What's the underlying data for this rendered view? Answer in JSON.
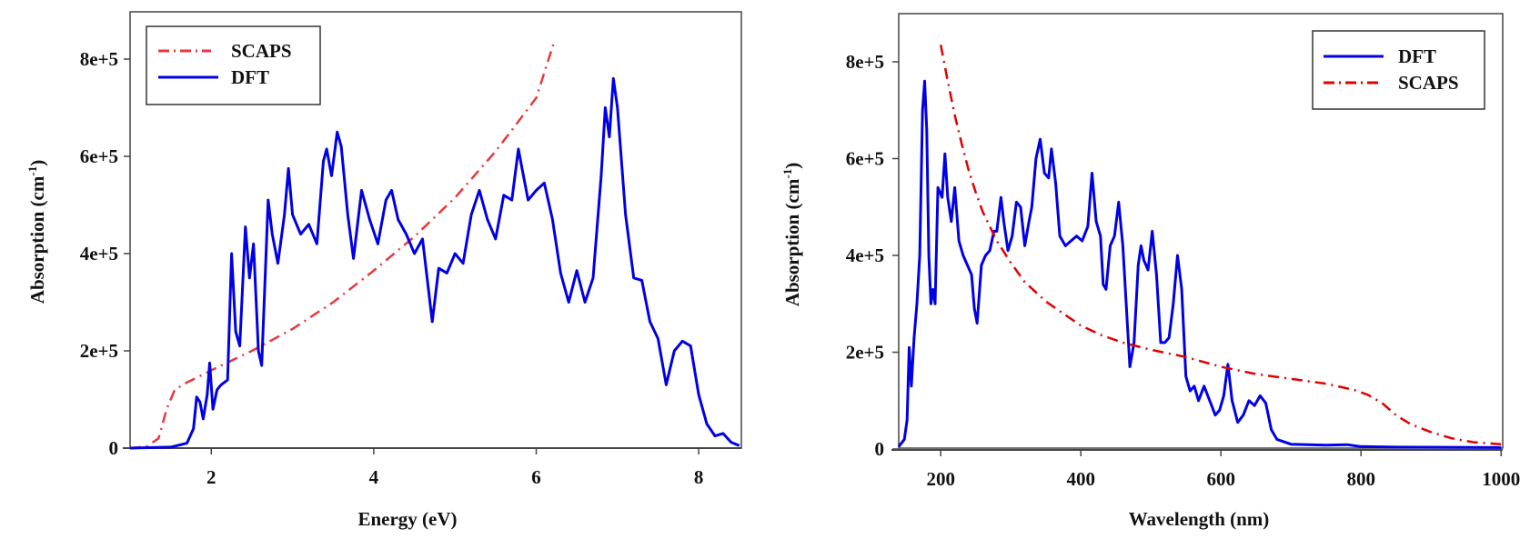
{
  "chart_data": [
    {
      "type": "line",
      "title": "",
      "xlabel": "Energy (eV)",
      "ylabel": "Absorption (cm",
      "ylabel_sup": "-1",
      "ylabel_close": ")",
      "xlim": [
        1.0,
        8.5
      ],
      "ylim": [
        0,
        850000
      ],
      "xticks": [
        2,
        4,
        6,
        8
      ],
      "xtick_labels": [
        "2",
        "4",
        "6",
        "8"
      ],
      "yticks": [
        0,
        200000,
        400000,
        600000,
        800000
      ],
      "ytick_labels": [
        "0",
        "2e+5",
        "4e+5",
        "6e+5",
        "8e+5"
      ],
      "grid": false,
      "legend_position": "upper-left",
      "legend": [
        {
          "name": "SCAPS",
          "color": "#e8383d",
          "style": "dashdot"
        },
        {
          "name": "DFT",
          "color": "#0000e6",
          "style": "solid"
        }
      ],
      "series": [
        {
          "name": "SCAPS",
          "color": "#e8383d",
          "style": "dashdot",
          "points": [
            [
              1.0,
              0
            ],
            [
              1.2,
              3000
            ],
            [
              1.35,
              20000
            ],
            [
              1.45,
              80000
            ],
            [
              1.55,
              120000
            ],
            [
              1.7,
              135000
            ],
            [
              2.0,
              160000
            ],
            [
              2.5,
              200000
            ],
            [
              3.0,
              245000
            ],
            [
              3.5,
              300000
            ],
            [
              4.0,
              365000
            ],
            [
              4.5,
              435000
            ],
            [
              5.0,
              515000
            ],
            [
              5.5,
              610000
            ],
            [
              6.0,
              720000
            ],
            [
              6.22,
              835000
            ]
          ]
        },
        {
          "name": "DFT",
          "color": "#0000e6",
          "style": "solid",
          "points": [
            [
              1.0,
              0
            ],
            [
              1.5,
              2000
            ],
            [
              1.7,
              10000
            ],
            [
              1.78,
              40000
            ],
            [
              1.82,
              105000
            ],
            [
              1.86,
              95000
            ],
            [
              1.9,
              60000
            ],
            [
              1.95,
              110000
            ],
            [
              1.98,
              175000
            ],
            [
              2.02,
              80000
            ],
            [
              2.07,
              120000
            ],
            [
              2.12,
              130000
            ],
            [
              2.2,
              140000
            ],
            [
              2.25,
              400000
            ],
            [
              2.3,
              240000
            ],
            [
              2.35,
              210000
            ],
            [
              2.42,
              455000
            ],
            [
              2.47,
              350000
            ],
            [
              2.52,
              420000
            ],
            [
              2.58,
              200000
            ],
            [
              2.62,
              170000
            ],
            [
              2.7,
              510000
            ],
            [
              2.75,
              440000
            ],
            [
              2.82,
              380000
            ],
            [
              2.9,
              480000
            ],
            [
              2.95,
              575000
            ],
            [
              3.0,
              480000
            ],
            [
              3.1,
              440000
            ],
            [
              3.2,
              460000
            ],
            [
              3.3,
              420000
            ],
            [
              3.38,
              590000
            ],
            [
              3.42,
              615000
            ],
            [
              3.48,
              560000
            ],
            [
              3.55,
              650000
            ],
            [
              3.6,
              620000
            ],
            [
              3.68,
              480000
            ],
            [
              3.75,
              390000
            ],
            [
              3.85,
              530000
            ],
            [
              3.95,
              470000
            ],
            [
              4.05,
              420000
            ],
            [
              4.15,
              510000
            ],
            [
              4.22,
              530000
            ],
            [
              4.3,
              470000
            ],
            [
              4.4,
              440000
            ],
            [
              4.5,
              400000
            ],
            [
              4.6,
              430000
            ],
            [
              4.72,
              260000
            ],
            [
              4.8,
              370000
            ],
            [
              4.9,
              360000
            ],
            [
              5.0,
              400000
            ],
            [
              5.1,
              380000
            ],
            [
              5.2,
              480000
            ],
            [
              5.3,
              530000
            ],
            [
              5.4,
              470000
            ],
            [
              5.5,
              430000
            ],
            [
              5.6,
              520000
            ],
            [
              5.7,
              510000
            ],
            [
              5.78,
              615000
            ],
            [
              5.82,
              580000
            ],
            [
              5.9,
              510000
            ],
            [
              6.0,
              530000
            ],
            [
              6.1,
              545000
            ],
            [
              6.2,
              470000
            ],
            [
              6.3,
              360000
            ],
            [
              6.4,
              300000
            ],
            [
              6.5,
              365000
            ],
            [
              6.6,
              300000
            ],
            [
              6.7,
              350000
            ],
            [
              6.8,
              560000
            ],
            [
              6.85,
              700000
            ],
            [
              6.9,
              640000
            ],
            [
              6.95,
              760000
            ],
            [
              7.0,
              700000
            ],
            [
              7.1,
              480000
            ],
            [
              7.2,
              350000
            ],
            [
              7.3,
              345000
            ],
            [
              7.4,
              260000
            ],
            [
              7.5,
              225000
            ],
            [
              7.6,
              130000
            ],
            [
              7.7,
              200000
            ],
            [
              7.8,
              220000
            ],
            [
              7.9,
              210000
            ],
            [
              8.0,
              110000
            ],
            [
              8.1,
              50000
            ],
            [
              8.2,
              25000
            ],
            [
              8.3,
              30000
            ],
            [
              8.4,
              12000
            ],
            [
              8.5,
              5000
            ]
          ]
        }
      ]
    },
    {
      "type": "line",
      "title": "",
      "xlabel": "Wavelength (nm)",
      "ylabel": "Absorption (cm",
      "ylabel_sup": "-1",
      "ylabel_close": ")",
      "xlim": [
        140,
        1000
      ],
      "ylim": [
        0,
        850000
      ],
      "xticks": [
        200,
        400,
        600,
        800,
        1000
      ],
      "xtick_labels": [
        "200",
        "400",
        "600",
        "800",
        "1000"
      ],
      "yticks": [
        0,
        200000,
        400000,
        600000,
        800000
      ],
      "ytick_labels": [
        "0",
        "2e+5",
        "4e+5",
        "6e+5",
        "8e+5"
      ],
      "grid": false,
      "legend_position": "upper-right",
      "legend": [
        {
          "name": "DFT",
          "color": "#0000e6",
          "style": "solid"
        },
        {
          "name": "SCAPS",
          "color": "#e00000",
          "style": "dashdot"
        }
      ],
      "series": [
        {
          "name": "DFT",
          "color": "#0000e6",
          "style": "solid",
          "points": [
            [
              140,
              5000
            ],
            [
              148,
              20000
            ],
            [
              152,
              60000
            ],
            [
              155,
              210000
            ],
            [
              158,
              130000
            ],
            [
              162,
              230000
            ],
            [
              166,
              300000
            ],
            [
              170,
              400000
            ],
            [
              174,
              700000
            ],
            [
              177,
              760000
            ],
            [
              180,
              660000
            ],
            [
              183,
              400000
            ],
            [
              186,
              300000
            ],
            [
              189,
              330000
            ],
            [
              192,
              300000
            ],
            [
              196,
              540000
            ],
            [
              202,
              520000
            ],
            [
              206,
              610000
            ],
            [
              210,
              520000
            ],
            [
              215,
              470000
            ],
            [
              220,
              540000
            ],
            [
              226,
              430000
            ],
            [
              232,
              400000
            ],
            [
              238,
              380000
            ],
            [
              244,
              360000
            ],
            [
              248,
              290000
            ],
            [
              252,
              260000
            ],
            [
              258,
              380000
            ],
            [
              264,
              400000
            ],
            [
              270,
              410000
            ],
            [
              276,
              450000
            ],
            [
              280,
              450000
            ],
            [
              286,
              520000
            ],
            [
              290,
              470000
            ],
            [
              296,
              410000
            ],
            [
              302,
              440000
            ],
            [
              308,
              510000
            ],
            [
              314,
              500000
            ],
            [
              320,
              420000
            ],
            [
              326,
              470000
            ],
            [
              330,
              500000
            ],
            [
              336,
              600000
            ],
            [
              342,
              640000
            ],
            [
              348,
              570000
            ],
            [
              354,
              560000
            ],
            [
              358,
              620000
            ],
            [
              364,
              550000
            ],
            [
              370,
              440000
            ],
            [
              378,
              420000
            ],
            [
              386,
              430000
            ],
            [
              394,
              440000
            ],
            [
              402,
              430000
            ],
            [
              410,
              460000
            ],
            [
              416,
              570000
            ],
            [
              422,
              470000
            ],
            [
              428,
              440000
            ],
            [
              432,
              340000
            ],
            [
              436,
              330000
            ],
            [
              442,
              420000
            ],
            [
              448,
              440000
            ],
            [
              454,
              510000
            ],
            [
              460,
              420000
            ],
            [
              466,
              270000
            ],
            [
              470,
              170000
            ],
            [
              476,
              220000
            ],
            [
              482,
              380000
            ],
            [
              486,
              420000
            ],
            [
              490,
              390000
            ],
            [
              496,
              370000
            ],
            [
              502,
              450000
            ],
            [
              508,
              360000
            ],
            [
              514,
              220000
            ],
            [
              520,
              220000
            ],
            [
              526,
              230000
            ],
            [
              532,
              300000
            ],
            [
              538,
              400000
            ],
            [
              544,
              330000
            ],
            [
              550,
              150000
            ],
            [
              556,
              120000
            ],
            [
              562,
              130000
            ],
            [
              568,
              100000
            ],
            [
              576,
              130000
            ],
            [
              584,
              100000
            ],
            [
              592,
              70000
            ],
            [
              598,
              80000
            ],
            [
              604,
              110000
            ],
            [
              610,
              175000
            ],
            [
              616,
              100000
            ],
            [
              624,
              55000
            ],
            [
              632,
              70000
            ],
            [
              640,
              100000
            ],
            [
              648,
              90000
            ],
            [
              656,
              110000
            ],
            [
              664,
              95000
            ],
            [
              672,
              40000
            ],
            [
              680,
              20000
            ],
            [
              700,
              10000
            ],
            [
              750,
              8000
            ],
            [
              780,
              9000
            ],
            [
              800,
              5000
            ],
            [
              850,
              4000
            ],
            [
              1000,
              3000
            ]
          ]
        },
        {
          "name": "SCAPS",
          "color": "#e00000",
          "style": "dashdot",
          "points": [
            [
              200,
              835000
            ],
            [
              210,
              760000
            ],
            [
              220,
              690000
            ],
            [
              230,
              630000
            ],
            [
              240,
              575000
            ],
            [
              250,
              530000
            ],
            [
              260,
              490000
            ],
            [
              280,
              430000
            ],
            [
              300,
              385000
            ],
            [
              320,
              345000
            ],
            [
              350,
              305000
            ],
            [
              380,
              275000
            ],
            [
              400,
              255000
            ],
            [
              430,
              235000
            ],
            [
              460,
              220000
            ],
            [
              500,
              205000
            ],
            [
              550,
              190000
            ],
            [
              600,
              170000
            ],
            [
              650,
              155000
            ],
            [
              700,
              145000
            ],
            [
              750,
              135000
            ],
            [
              790,
              122000
            ],
            [
              810,
              112000
            ],
            [
              830,
              95000
            ],
            [
              850,
              70000
            ],
            [
              870,
              52000
            ],
            [
              900,
              35000
            ],
            [
              930,
              22000
            ],
            [
              960,
              14000
            ],
            [
              1000,
              10000
            ]
          ]
        }
      ]
    }
  ]
}
